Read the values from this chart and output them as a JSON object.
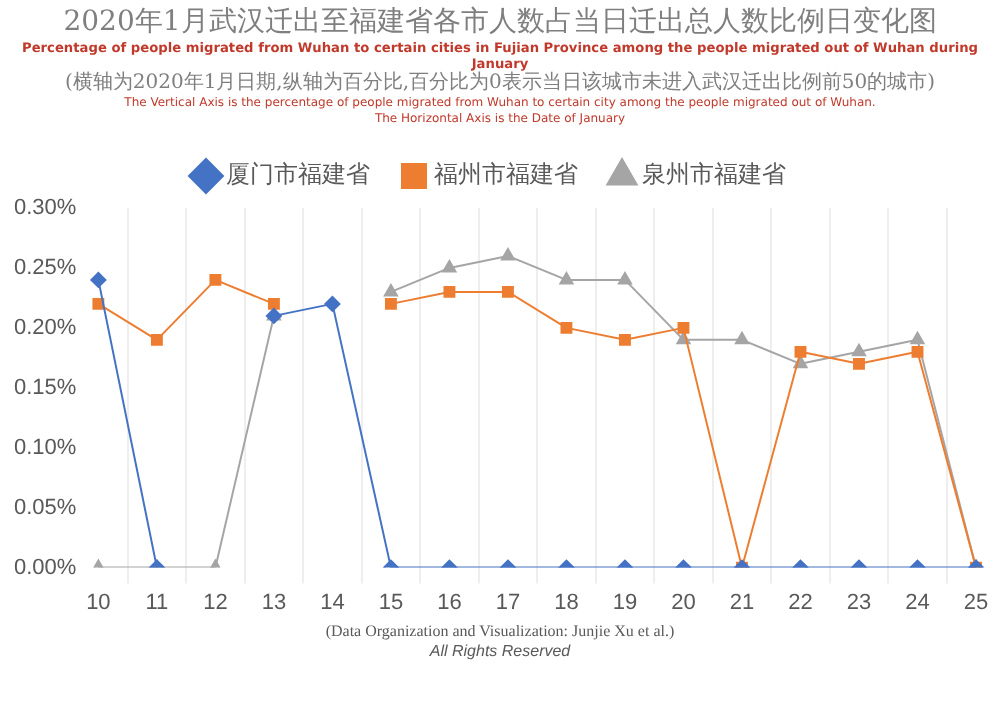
{
  "chart_data": {
    "type": "line",
    "title": "2020年1月武汉迁出至福建省各市人数占当日迁出总人数比例日变化图",
    "subtitle": "Percentage of people migrated from Wuhan to certain cities in Fujian Province among the people migrated out of Wuhan during January",
    "annotations": [
      "(横轴为2020年1月日期,纵轴为百分比,百分比为0表示当日该城市未进入武汉迁出比例前50的城市)",
      "The Vertical Axis is the percentage of people migrated from Wuhan to certain city  among the people migrated out of Wuhan.",
      "The Horizontal Axis is the Date of January",
      "(Data Organization and Visualization: Junjie Xu et al.)",
      "All Rights Reserved"
    ],
    "categories": [
      "10",
      "11",
      "12",
      "13",
      "14",
      "15",
      "16",
      "17",
      "18",
      "19",
      "20",
      "21",
      "22",
      "23",
      "24",
      "25"
    ],
    "series": [
      {
        "name": "厦门市福建省",
        "color": "#4472c4",
        "marker": "diamond",
        "values": [
          0.24,
          0,
          null,
          0.21,
          0.22,
          0,
          0,
          0,
          0,
          0,
          0,
          0,
          0,
          0,
          0,
          0
        ]
      },
      {
        "name": "福州市福建省",
        "color": "#ed7d31",
        "marker": "square",
        "values": [
          0.22,
          0.19,
          0.24,
          0.22,
          null,
          0.22,
          0.23,
          0.23,
          0.2,
          0.19,
          0.2,
          0,
          0.18,
          0.17,
          0.18,
          0
        ]
      },
      {
        "name": "泉州市福建省",
        "color": "#a5a5a5",
        "marker": "triangle",
        "values": [
          0,
          0,
          0,
          0.21,
          null,
          0.23,
          0.25,
          0.26,
          0.24,
          0.24,
          0.19,
          0.19,
          0.17,
          0.18,
          0.19,
          0
        ]
      }
    ],
    "ylim": [
      0,
      0.3
    ],
    "yticks": [
      {
        "value": 0,
        "label": "0.00%"
      },
      {
        "value": 0.05,
        "label": "0.05%"
      },
      {
        "value": 0.1,
        "label": "0.10%"
      },
      {
        "value": 0.15,
        "label": "0.15%"
      },
      {
        "value": 0.2,
        "label": "0.20%"
      },
      {
        "value": 0.25,
        "label": "0.25%"
      },
      {
        "value": 0.3,
        "label": "0.30%"
      }
    ],
    "grid": "x",
    "legend": "top"
  }
}
